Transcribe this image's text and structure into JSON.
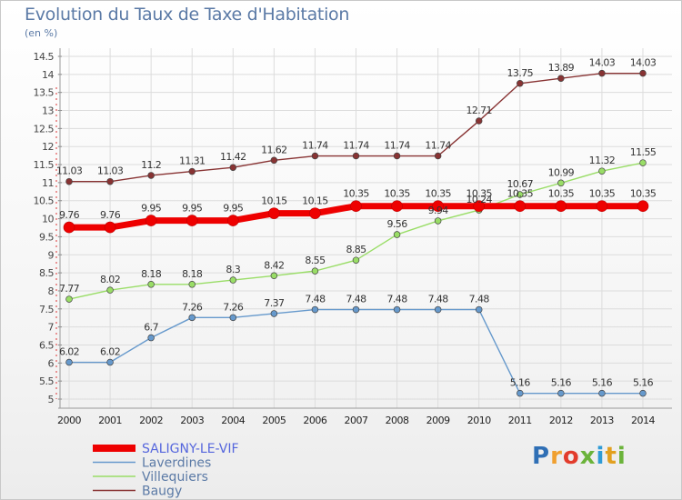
{
  "brand": {
    "name": "Proxiti",
    "letter_colors": [
      "#2f6fb5",
      "#f0a030",
      "#e23c2c",
      "#6bb33a",
      "#2f9bd6",
      "#e2a020",
      "#6bb33a"
    ]
  },
  "chart_data": {
    "type": "line",
    "title": "Evolution du Taux de Taxe d'Habitation",
    "ylabel": "(en %)",
    "xlabel": "",
    "ylim": [
      5,
      14.5
    ],
    "yticks": [
      "5",
      "5.5",
      "6",
      "6.5",
      "7",
      "7.5",
      "8",
      "8.5",
      "9",
      "9.5",
      "10",
      "10.5",
      "11",
      "11.5",
      "12",
      "12.5",
      "13",
      "13.5",
      "14",
      "14.5"
    ],
    "categories": [
      "2000",
      "2001",
      "2002",
      "2003",
      "2004",
      "2005",
      "2006",
      "2007",
      "2008",
      "2009",
      "2010",
      "2011",
      "2012",
      "2013",
      "2014"
    ],
    "series": [
      {
        "name": "SALIGNY-LE-VIF",
        "color": "#ee0000",
        "values": [
          9.76,
          9.76,
          9.95,
          9.95,
          9.95,
          10.15,
          10.15,
          10.35,
          10.35,
          10.35,
          10.35,
          10.35,
          10.35,
          10.35,
          10.35
        ],
        "labels": [
          "9.76",
          "9.76",
          "9.95",
          "9.95",
          "9.95",
          "10.15",
          "10.15",
          "10.35",
          "10.35",
          "10.35",
          "10.35",
          "10.35",
          "10.35",
          "10.35",
          "10.35"
        ]
      },
      {
        "name": "Laverdines",
        "color": "#6699cc",
        "values": [
          6.02,
          6.02,
          6.7,
          7.26,
          7.26,
          7.37,
          7.48,
          7.48,
          7.48,
          7.48,
          7.48,
          5.16,
          5.16,
          5.16,
          5.16
        ],
        "labels": [
          "6.02",
          "6.02",
          "6.7",
          "7.26",
          "7.26",
          "7.37",
          "7.48",
          "7.48",
          "7.48",
          "7.48",
          "7.48",
          "5.16",
          "5.16",
          "5.16",
          "5.16"
        ]
      },
      {
        "name": "Villequiers",
        "color": "#99dd66",
        "values": [
          7.77,
          8.02,
          8.18,
          8.18,
          8.3,
          8.42,
          8.55,
          8.85,
          9.56,
          9.94,
          10.24,
          10.67,
          10.99,
          11.32,
          11.55
        ],
        "labels": [
          "7.77",
          "8.02",
          "8.18",
          "8.18",
          "8.3",
          "8.42",
          "8.55",
          "8.85",
          "9.56",
          "9.94",
          "10.24",
          "10.67",
          "10.99",
          "11.32",
          "11.55"
        ]
      },
      {
        "name": "Baugy",
        "color": "#883333",
        "values": [
          11.03,
          11.03,
          11.2,
          11.31,
          11.42,
          11.62,
          11.74,
          11.74,
          11.74,
          11.74,
          12.71,
          13.75,
          13.89,
          14.03,
          14.03
        ],
        "labels": [
          "11.03",
          "11.03",
          "11.2",
          "11.31",
          "11.42",
          "11.62",
          "11.74",
          "11.74",
          "11.74",
          "11.74",
          "12.71",
          "13.75",
          "13.89",
          "14.03",
          "14.03"
        ]
      }
    ],
    "grid": true,
    "legend": "bottom-left"
  }
}
